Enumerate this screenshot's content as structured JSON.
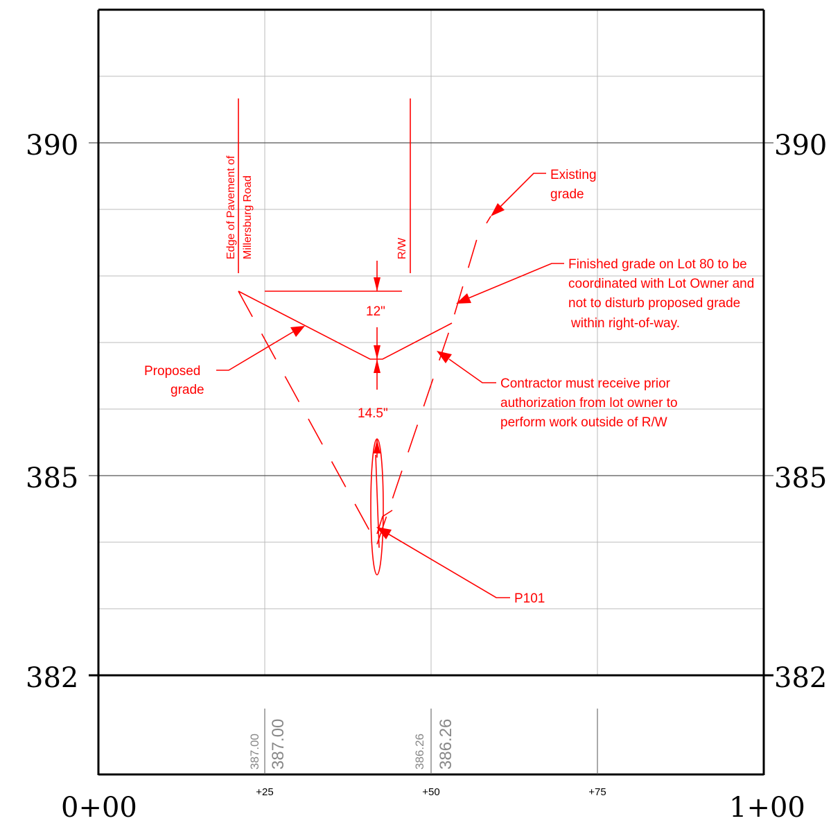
{
  "elevations": {
    "e390_left": "390",
    "e385_left": "385",
    "e382_left": "382",
    "e390_right": "390",
    "e385_right": "385",
    "e382_right": "382"
  },
  "stations": {
    "start": "0+00",
    "s25": "+25",
    "s50": "+50",
    "s75": "+75",
    "end": "1+00"
  },
  "profile_values": {
    "s25_small": "387.00",
    "s25_big": "387.00",
    "s50_small": "386.26",
    "s50_big": "386.26"
  },
  "annotations": {
    "edge_line1": "Edge of Pavement of",
    "edge_line2": "Millersburg Road",
    "rw": "R/W",
    "existing_1": "Existing",
    "existing_2": "grade",
    "finished_1": "Finished grade on Lot 80 to be",
    "finished_2": "coordinated with Lot Owner and",
    "finished_3": "not to disturb proposed grade",
    "finished_4": "within right-of-way.",
    "proposed_1": "Proposed",
    "proposed_2": "grade",
    "contractor_1": "Contractor must receive prior",
    "contractor_2": "authorization from lot owner to",
    "contractor_3": "perform work outside of R/W",
    "dim_12": "12\"",
    "dim_145": "14.5\"",
    "p101": "P101"
  },
  "colors": {
    "markup": "#ff0000",
    "grid_major": "#555555",
    "grid_minor": "#bbbbbb",
    "values": "#888888"
  }
}
